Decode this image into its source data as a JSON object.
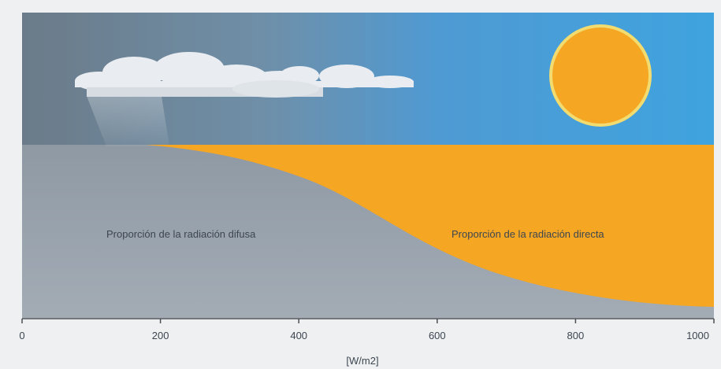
{
  "labels": {
    "diffuse": "Proporción de la radiación difusa",
    "direct": "Proporción de la radiación directa",
    "x_unit": "[W/m2]"
  },
  "x_axis": {
    "ticks": [
      "0",
      "200",
      "400",
      "600",
      "800",
      "1000"
    ],
    "min": 0,
    "max": 1000
  },
  "colors": {
    "sky_left": "#6f7f8d",
    "sky_right": "#3fa0dc",
    "diffuse_area": "#8c96a1",
    "direct_area": "#f5a623",
    "sun": "#f5a623",
    "sun_rim": "#f2dc70",
    "cloud": "#e9edf1",
    "text": "#3d4650"
  }
}
